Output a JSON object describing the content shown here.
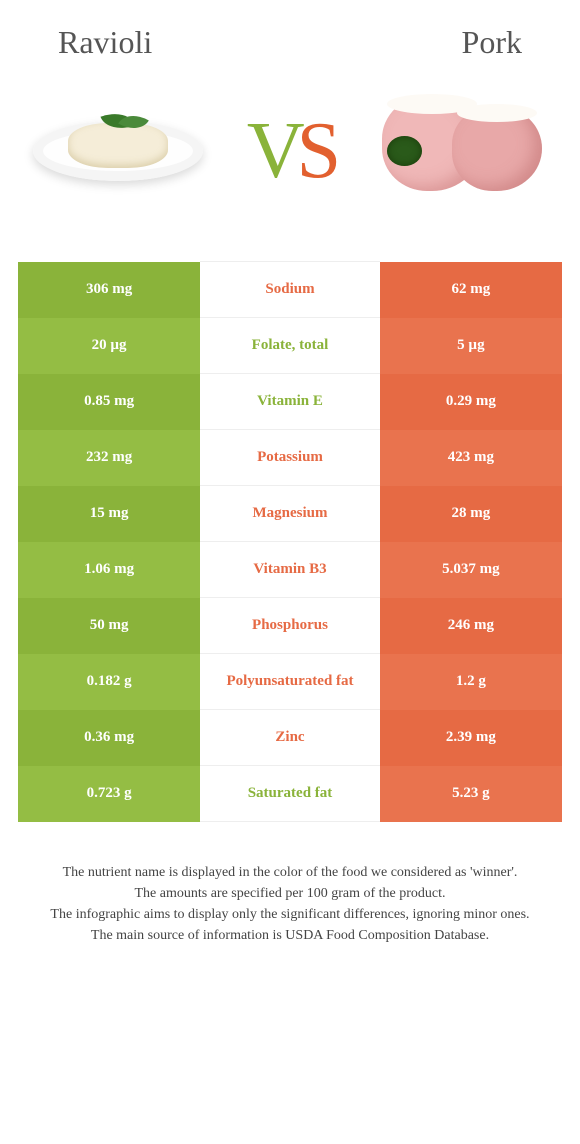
{
  "header": {
    "left_title": "Ravioli",
    "right_title": "Pork",
    "vs_v": "V",
    "vs_s": "S"
  },
  "colors": {
    "green": "#8ab33a",
    "green_alt": "#94bd44",
    "orange": "#e66a44",
    "orange_alt": "#e9734e"
  },
  "comparison": {
    "type": "table",
    "rows": [
      {
        "left": "306 mg",
        "label": "Sodium",
        "right": "62 mg",
        "winner": "orange"
      },
      {
        "left": "20 µg",
        "label": "Folate, total",
        "right": "5 µg",
        "winner": "green"
      },
      {
        "left": "0.85 mg",
        "label": "Vitamin E",
        "right": "0.29 mg",
        "winner": "green"
      },
      {
        "left": "232 mg",
        "label": "Potassium",
        "right": "423 mg",
        "winner": "orange"
      },
      {
        "left": "15 mg",
        "label": "Magnesium",
        "right": "28 mg",
        "winner": "orange"
      },
      {
        "left": "1.06 mg",
        "label": "Vitamin B3",
        "right": "5.037 mg",
        "winner": "orange"
      },
      {
        "left": "50 mg",
        "label": "Phosphorus",
        "right": "246 mg",
        "winner": "orange"
      },
      {
        "left": "0.182 g",
        "label": "Polyunsaturated fat",
        "right": "1.2 g",
        "winner": "orange"
      },
      {
        "left": "0.36 mg",
        "label": "Zinc",
        "right": "2.39 mg",
        "winner": "orange"
      },
      {
        "left": "0.723 g",
        "label": "Saturated fat",
        "right": "5.23 g",
        "winner": "green"
      }
    ]
  },
  "footer": {
    "line1": "The nutrient name is displayed in the color of the food we considered as 'winner'.",
    "line2": "The amounts are specified per 100 gram of the product.",
    "line3": "The infographic aims to display only the significant differences, ignoring minor ones.",
    "line4": "The main source of information is USDA Food Composition Database."
  }
}
